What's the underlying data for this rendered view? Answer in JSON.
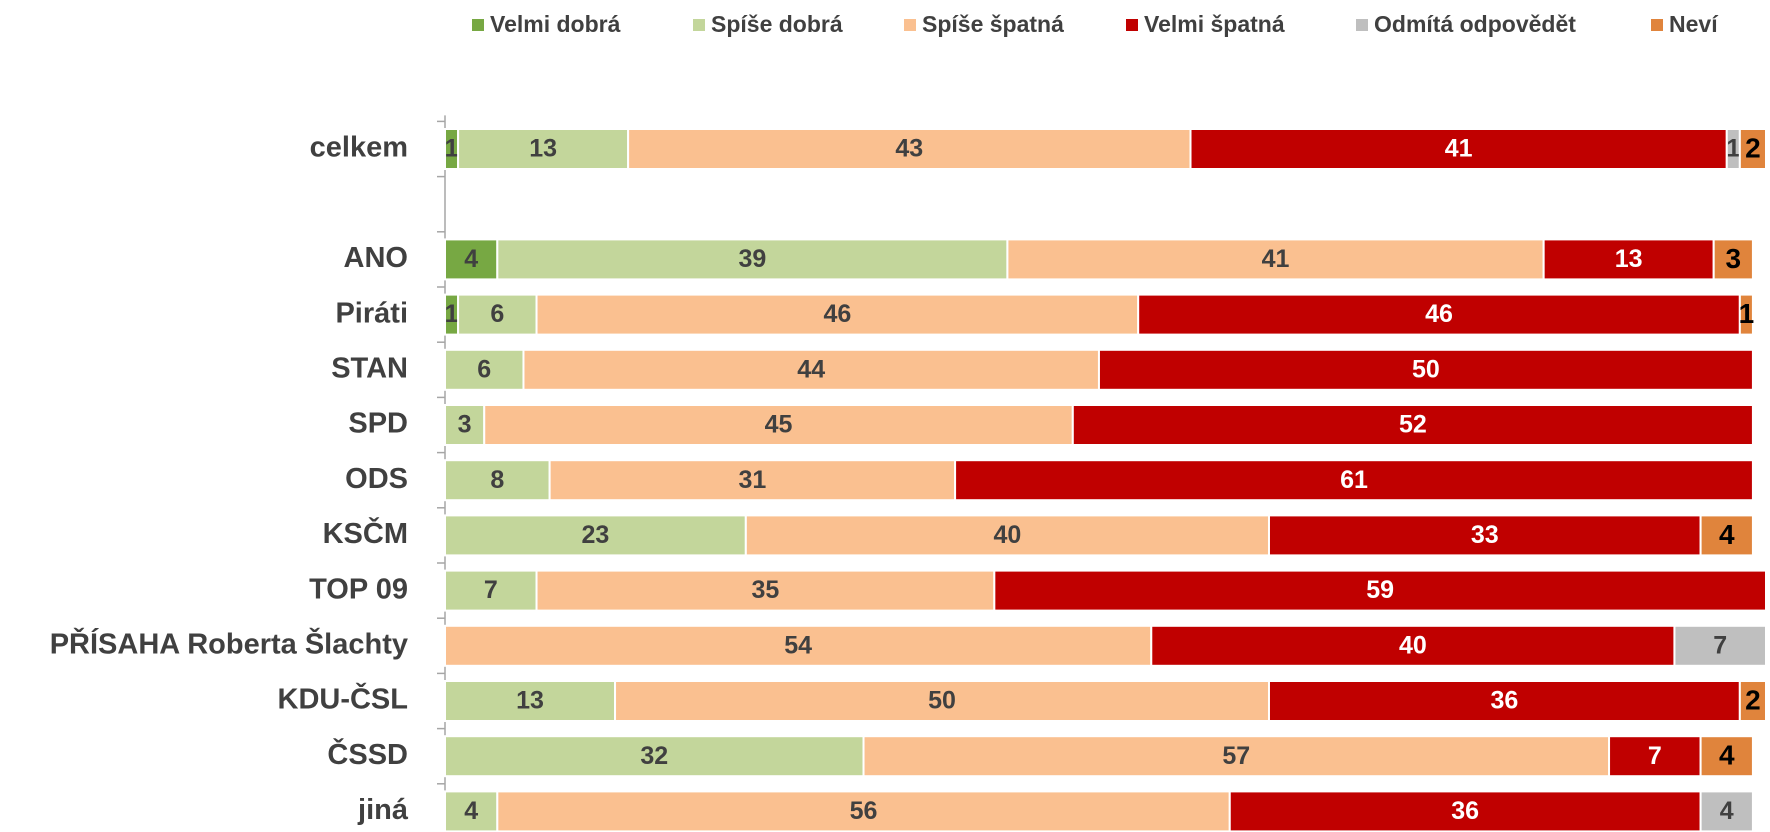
{
  "chart_data": {
    "type": "stacked-bar-horizontal",
    "categories": [
      "celkem",
      null,
      "ANO",
      "Piráti",
      "STAN",
      "SPD",
      "ODS",
      "KSČM",
      "TOP 09",
      "PŘÍSAHA Roberta Šlachty",
      "KDU-ČSL",
      "ČSSD",
      "jiná"
    ],
    "series": [
      {
        "name": "Velmi dobrá",
        "color": "#77a843",
        "values": [
          1,
          null,
          4,
          1,
          null,
          null,
          null,
          null,
          null,
          null,
          null,
          null,
          null
        ]
      },
      {
        "name": "Spíše dobrá",
        "color": "#c3d69b",
        "values": [
          13,
          null,
          39,
          6,
          6,
          3,
          8,
          23,
          7,
          null,
          13,
          32,
          4
        ]
      },
      {
        "name": "Spíše špatná",
        "color": "#fac090",
        "values": [
          43,
          null,
          41,
          46,
          44,
          45,
          31,
          40,
          35,
          54,
          50,
          57,
          56
        ]
      },
      {
        "name": "Velmi špatná",
        "color": "#c00000",
        "values": [
          41,
          null,
          13,
          46,
          50,
          52,
          61,
          33,
          59,
          40,
          36,
          7,
          36
        ]
      },
      {
        "name": "Odmítá odpovědět",
        "color": "#bfbfbf",
        "values": [
          1,
          null,
          null,
          null,
          null,
          null,
          null,
          null,
          null,
          7,
          null,
          null,
          4
        ]
      },
      {
        "name": "Neví",
        "color": "#e0843c",
        "values": [
          2,
          null,
          3,
          1,
          null,
          null,
          null,
          4,
          null,
          null,
          2,
          4,
          null
        ]
      }
    ],
    "xlim": [
      0,
      101
    ],
    "legend": "top"
  }
}
